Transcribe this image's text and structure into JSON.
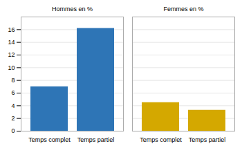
{
  "chart_data": {
    "type": "bar",
    "categories": [
      "Temps complet",
      "Temps partiel"
    ],
    "series": [
      {
        "name": "Hommes en %",
        "color": "#2E75B6",
        "values": [
          7.0,
          16.2
        ]
      },
      {
        "name": "Femmes en %",
        "color": "#D4A800",
        "values": [
          4.5,
          3.3
        ]
      }
    ],
    "ylim": [
      0,
      18
    ],
    "yticks": [
      0,
      2,
      4,
      6,
      8,
      10,
      12,
      14,
      16
    ],
    "grid": true
  }
}
